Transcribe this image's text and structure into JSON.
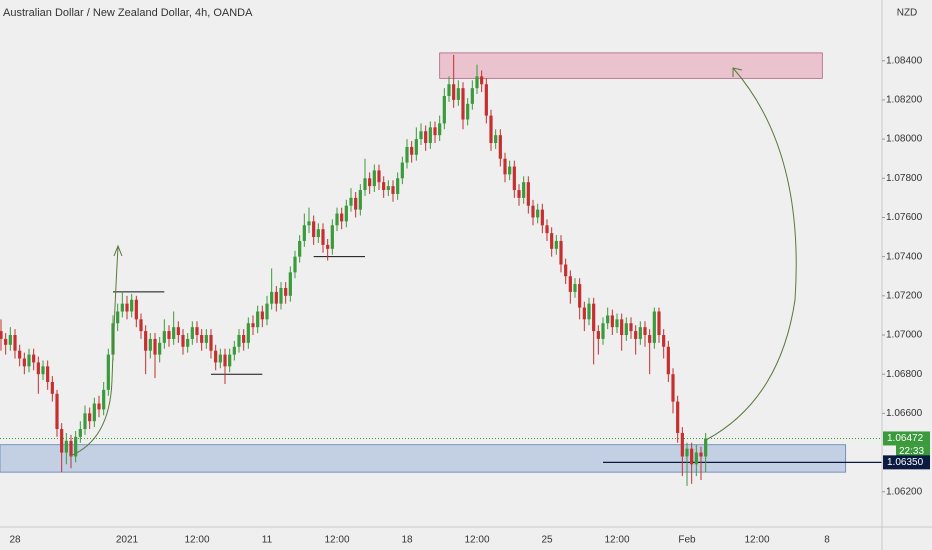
{
  "chart_data": {
    "type": "candlestick",
    "title": "Australian Dollar / New Zealand Dollar, 4h, OANDA",
    "currency": "NZD",
    "categories": [
      null,
      null,
      null,
      "28",
      null,
      null,
      null,
      null,
      null,
      null,
      null,
      null,
      null,
      null,
      null,
      null,
      null,
      null,
      null,
      null,
      null,
      null,
      null,
      null,
      null,
      null,
      null,
      "2021",
      null,
      null,
      null,
      null,
      null,
      null,
      null,
      null,
      null,
      null,
      null,
      null,
      null,
      null,
      "12:00",
      null,
      null,
      null,
      null,
      null,
      null,
      null,
      null,
      null,
      null,
      null,
      null,
      null,
      null,
      "11",
      null,
      null,
      null,
      null,
      null,
      null,
      null,
      null,
      null,
      null,
      null,
      null,
      null,
      null,
      "12:00",
      null,
      null,
      null,
      null,
      null,
      null,
      null,
      null,
      null,
      null,
      null,
      null,
      null,
      null,
      "18",
      null,
      null,
      null,
      null,
      null,
      null,
      null,
      null,
      null,
      null,
      null,
      null,
      null,
      null,
      "12:00",
      null,
      null,
      null,
      null,
      null,
      null,
      null,
      null,
      null,
      null,
      null,
      null,
      null,
      null,
      "25",
      null,
      null,
      null,
      null,
      null,
      null,
      null,
      null,
      null,
      null,
      null,
      null,
      null,
      null,
      "12:00",
      null,
      null,
      null,
      null,
      null,
      null,
      null,
      null,
      null,
      null,
      null,
      null,
      null,
      null,
      "Feb",
      null,
      null,
      null,
      null,
      null,
      null,
      null,
      null,
      null,
      null,
      null,
      null,
      null,
      null,
      "12:00",
      null,
      null,
      null,
      null,
      null,
      null,
      null,
      null,
      null,
      null,
      null,
      null,
      null,
      null,
      "8",
      null,
      null,
      null,
      null,
      null,
      null,
      null,
      null,
      null,
      null,
      null,
      null
    ],
    "open": [
      1.0702,
      1.0698,
      1.0695,
      1.07,
      1.0692,
      1.0688,
      1.0684,
      1.069,
      1.0686,
      1.068,
      1.0684,
      1.0676,
      1.067,
      1.0652,
      1.064,
      1.0646,
      1.0638,
      1.0648,
      1.0652,
      1.066,
      1.0656,
      1.0665,
      1.0662,
      1.0672,
      1.069,
      1.0706,
      1.0712,
      1.0716,
      1.0712,
      1.0718,
      1.0708,
      1.0702,
      1.0692,
      1.0698,
      1.069,
      1.0696,
      1.0702,
      1.0698,
      1.0704,
      1.07,
      1.0694,
      1.0698,
      1.0704,
      1.07,
      1.0696,
      1.07,
      1.0692,
      1.0686,
      1.069,
      1.0684,
      1.069,
      1.0694,
      1.07,
      1.0696,
      1.0706,
      1.0704,
      1.0712,
      1.0708,
      1.0716,
      1.0722,
      1.0716,
      1.0724,
      1.072,
      1.0732,
      1.074,
      1.0748,
      1.0756,
      1.0758,
      1.075,
      1.0754,
      1.0746,
      1.0744,
      1.0756,
      1.0762,
      1.0758,
      1.0766,
      1.077,
      1.0764,
      1.0774,
      1.078,
      1.0776,
      1.0784,
      1.0778,
      1.0774,
      1.0776,
      1.0772,
      1.078,
      1.0788,
      1.0796,
      1.0792,
      1.08,
      1.0804,
      1.0798,
      1.0806,
      1.0802,
      1.0808,
      1.0822,
      1.0828,
      1.082,
      1.0826,
      1.081,
      1.0818,
      1.0826,
      1.0832,
      1.0828,
      1.0812,
      1.0798,
      1.0802,
      1.079,
      1.0782,
      1.0786,
      1.0774,
      1.077,
      1.0778,
      1.0766,
      1.076,
      1.0764,
      1.0756,
      1.0752,
      1.0744,
      1.0748,
      1.0736,
      1.073,
      1.0722,
      1.0726,
      1.0714,
      1.0708,
      1.0716,
      1.0702,
      1.0698,
      1.0706,
      1.071,
      1.0704,
      1.0708,
      1.07,
      1.0706,
      1.0702,
      1.0698,
      1.0704,
      1.07,
      1.0696,
      1.0712,
      1.07,
      1.0694,
      1.068,
      1.0666,
      1.065,
      1.0638,
      1.0642,
      1.0634,
      1.064,
      1.0638,
      null,
      null,
      null,
      null,
      null,
      null,
      null,
      null,
      null,
      null,
      null,
      null,
      null,
      null,
      null,
      null,
      null,
      null,
      null,
      null,
      null,
      null,
      null,
      null,
      null,
      null,
      null,
      null,
      null,
      null,
      null,
      null,
      null,
      null,
      null,
      null,
      null,
      null
    ],
    "high": [
      1.0708,
      1.0701,
      1.0704,
      1.0703,
      1.0695,
      1.0691,
      1.0693,
      1.0693,
      1.0689,
      1.0687,
      1.0687,
      1.0679,
      1.0672,
      1.0655,
      1.065,
      1.0649,
      1.0651,
      1.0656,
      1.0664,
      1.0663,
      1.0668,
      1.0669,
      1.0676,
      1.0693,
      1.071,
      1.0716,
      1.0722,
      1.072,
      1.0721,
      1.072,
      1.0711,
      1.0705,
      1.0701,
      1.0701,
      1.0699,
      1.0708,
      1.0705,
      1.0712,
      1.0707,
      1.0703,
      1.0701,
      1.0707,
      1.0707,
      1.0703,
      1.0703,
      1.0703,
      1.0695,
      1.0693,
      1.0693,
      1.0693,
      1.0697,
      1.0703,
      1.0703,
      1.0709,
      1.071,
      1.0715,
      1.0715,
      1.072,
      1.0734,
      1.0725,
      1.0727,
      1.0727,
      1.0735,
      1.0743,
      1.0751,
      1.0762,
      1.0765,
      1.0761,
      1.0757,
      1.0757,
      1.0749,
      1.0759,
      1.0765,
      1.0765,
      1.0769,
      1.0775,
      1.0773,
      1.0777,
      1.079,
      1.0783,
      1.0787,
      1.0787,
      1.0781,
      1.0779,
      1.0779,
      1.0783,
      1.0791,
      1.08,
      1.0799,
      1.0806,
      1.0808,
      1.0807,
      1.0809,
      1.0809,
      1.0812,
      1.0826,
      1.0832,
      1.0843,
      1.083,
      1.0829,
      1.0821,
      1.083,
      1.0838,
      1.0835,
      1.0831,
      1.0815,
      1.0805,
      1.0805,
      1.0793,
      1.0789,
      1.0789,
      1.0777,
      1.0781,
      1.0781,
      1.0769,
      1.0767,
      1.0767,
      1.0759,
      1.0755,
      1.0751,
      1.0751,
      1.0739,
      1.0733,
      1.0729,
      1.0729,
      1.0717,
      1.0719,
      1.0719,
      1.0705,
      1.0709,
      1.0714,
      1.0713,
      1.0711,
      1.0711,
      1.0709,
      1.0709,
      1.0705,
      1.0707,
      1.0707,
      1.0703,
      1.0714,
      1.0714,
      1.0703,
      1.0697,
      1.0683,
      1.0669,
      1.0653,
      1.0645,
      1.0645,
      1.0644,
      1.0643,
      1.065,
      null,
      null,
      null,
      null,
      null,
      null,
      null,
      null,
      null,
      null,
      null,
      null,
      null,
      null,
      null,
      null,
      null,
      null,
      null,
      null,
      null,
      null,
      null,
      null,
      null,
      null,
      null,
      null,
      null,
      null,
      null,
      null,
      null,
      null,
      null,
      null,
      null,
      null
    ],
    "low": [
      1.0692,
      1.069,
      1.0692,
      1.0688,
      1.0684,
      1.068,
      1.0681,
      1.0682,
      1.067,
      1.0677,
      1.0672,
      1.0666,
      1.0648,
      1.063,
      1.0634,
      1.0632,
      1.0635,
      1.0645,
      1.0649,
      1.0652,
      1.0653,
      1.0658,
      1.0659,
      1.0669,
      1.0687,
      1.0702,
      1.0709,
      1.0708,
      1.0709,
      1.0704,
      1.0698,
      1.068,
      1.0688,
      1.0678,
      1.0686,
      1.0693,
      1.0694,
      1.0695,
      1.0696,
      1.069,
      1.0691,
      1.0695,
      1.0696,
      1.0692,
      1.0693,
      1.0688,
      1.0682,
      1.0683,
      1.0675,
      1.0681,
      1.0687,
      1.0691,
      1.0692,
      1.0693,
      1.07,
      1.0701,
      1.0704,
      1.0705,
      1.0713,
      1.0712,
      1.0713,
      1.0716,
      1.0717,
      1.0729,
      1.0737,
      1.0745,
      1.0752,
      1.0746,
      1.0747,
      1.0742,
      1.0738,
      1.0741,
      1.0753,
      1.0754,
      1.0755,
      1.0763,
      1.076,
      1.0761,
      1.0771,
      1.0772,
      1.0773,
      1.0774,
      1.077,
      1.0771,
      1.0768,
      1.0769,
      1.0777,
      1.0785,
      1.0788,
      1.0789,
      1.0797,
      1.0794,
      1.0795,
      1.0798,
      1.0799,
      1.0805,
      1.0819,
      1.0816,
      1.0817,
      1.0805,
      1.0807,
      1.0815,
      1.0823,
      1.0824,
      1.0808,
      1.0794,
      1.0795,
      1.0786,
      1.0778,
      1.0779,
      1.077,
      1.0766,
      1.0767,
      1.0762,
      1.0756,
      1.0757,
      1.0752,
      1.0748,
      1.074,
      1.0741,
      1.0732,
      1.0726,
      1.0716,
      1.0719,
      1.0708,
      1.0702,
      1.0705,
      1.0685,
      1.069,
      1.0695,
      1.0703,
      1.07,
      1.0701,
      1.0692,
      1.0697,
      1.0698,
      1.069,
      1.0695,
      1.0694,
      1.068,
      1.0693,
      1.0696,
      1.0688,
      1.0676,
      1.066,
      1.0645,
      1.0628,
      1.0623,
      1.0624,
      1.0628,
      1.0626,
      1.063,
      null,
      null,
      null,
      null,
      null,
      null,
      null,
      null,
      null,
      null,
      null,
      null,
      null,
      null,
      null,
      null,
      null,
      null,
      null,
      null,
      null,
      null,
      null,
      null,
      null,
      null,
      null,
      null,
      null,
      null,
      null,
      null,
      null,
      null,
      null,
      null,
      null,
      null
    ],
    "close": [
      1.0698,
      1.0695,
      1.07,
      1.0692,
      1.0688,
      1.0684,
      1.069,
      1.0686,
      1.068,
      1.0684,
      1.0676,
      1.067,
      1.0652,
      1.064,
      1.0646,
      1.0638,
      1.0648,
      1.0652,
      1.066,
      1.0656,
      1.0665,
      1.0662,
      1.0672,
      1.069,
      1.0706,
      1.0712,
      1.0716,
      1.0712,
      1.0718,
      1.0708,
      1.0702,
      1.0692,
      1.0698,
      1.069,
      1.0696,
      1.0702,
      1.0698,
      1.0704,
      1.07,
      1.0694,
      1.0698,
      1.0704,
      1.07,
      1.0696,
      1.07,
      1.0692,
      1.0686,
      1.069,
      1.0684,
      1.069,
      1.0694,
      1.07,
      1.0696,
      1.0706,
      1.0704,
      1.0712,
      1.0708,
      1.0716,
      1.0722,
      1.0716,
      1.0724,
      1.072,
      1.0732,
      1.074,
      1.0748,
      1.0756,
      1.0758,
      1.075,
      1.0754,
      1.0746,
      1.0744,
      1.0756,
      1.0762,
      1.0758,
      1.0766,
      1.077,
      1.0764,
      1.0774,
      1.078,
      1.0776,
      1.0784,
      1.0778,
      1.0774,
      1.0776,
      1.0772,
      1.078,
      1.0788,
      1.0796,
      1.0792,
      1.08,
      1.0804,
      1.0798,
      1.0806,
      1.0802,
      1.0808,
      1.0822,
      1.0828,
      1.082,
      1.0826,
      1.081,
      1.0818,
      1.0826,
      1.0832,
      1.0828,
      1.0812,
      1.0798,
      1.0802,
      1.079,
      1.0782,
      1.0786,
      1.0774,
      1.077,
      1.0778,
      1.0766,
      1.076,
      1.0764,
      1.0756,
      1.0752,
      1.0744,
      1.0748,
      1.0736,
      1.073,
      1.0722,
      1.0726,
      1.0714,
      1.0708,
      1.0716,
      1.0702,
      1.0698,
      1.0706,
      1.071,
      1.0704,
      1.0708,
      1.07,
      1.0706,
      1.0702,
      1.0698,
      1.0704,
      1.07,
      1.0696,
      1.0712,
      1.07,
      1.0694,
      1.068,
      1.0666,
      1.065,
      1.0638,
      1.0642,
      1.0634,
      1.064,
      1.0638,
      1.06472,
      null,
      null,
      null,
      null,
      null,
      null,
      null,
      null,
      null,
      null,
      null,
      null,
      null,
      null,
      null,
      null,
      null,
      null,
      null,
      null,
      null,
      null,
      null,
      null,
      null,
      null,
      null,
      null,
      null,
      null,
      null,
      null,
      null,
      null,
      null,
      null,
      null,
      null
    ],
    "up_color": "#3b9a3b",
    "down_color": "#c62f2f",
    "ylim": [
      1.0602,
      1.0871
    ],
    "yticks": [
      {
        "value": 1.062,
        "label": "1.06200"
      },
      {
        "value": 1.066,
        "label": "1.06600"
      },
      {
        "value": 1.068,
        "label": "1.06800"
      },
      {
        "value": 1.07,
        "label": "1.07000"
      },
      {
        "value": 1.072,
        "label": "1.07200"
      },
      {
        "value": 1.074,
        "label": "1.07400"
      },
      {
        "value": 1.076,
        "label": "1.07600"
      },
      {
        "value": 1.078,
        "label": "1.07800"
      },
      {
        "value": 1.08,
        "label": "1.08000"
      },
      {
        "value": 1.082,
        "label": "1.08200"
      },
      {
        "value": 1.084,
        "label": "1.08400"
      }
    ],
    "grid": false,
    "zones": [
      {
        "from": 1.0831,
        "to": 1.0844,
        "color": "#e8b4c4"
      },
      {
        "from": 1.063,
        "to": 1.0644,
        "color": "#b4c4de"
      }
    ],
    "levels": [
      1.0722,
      1.068,
      1.074
    ],
    "price_line": {
      "value": 1.0635,
      "label": "1.06350"
    },
    "last_price": {
      "value": 1.06472,
      "label": "1.06472"
    },
    "countdown": "22:33"
  }
}
